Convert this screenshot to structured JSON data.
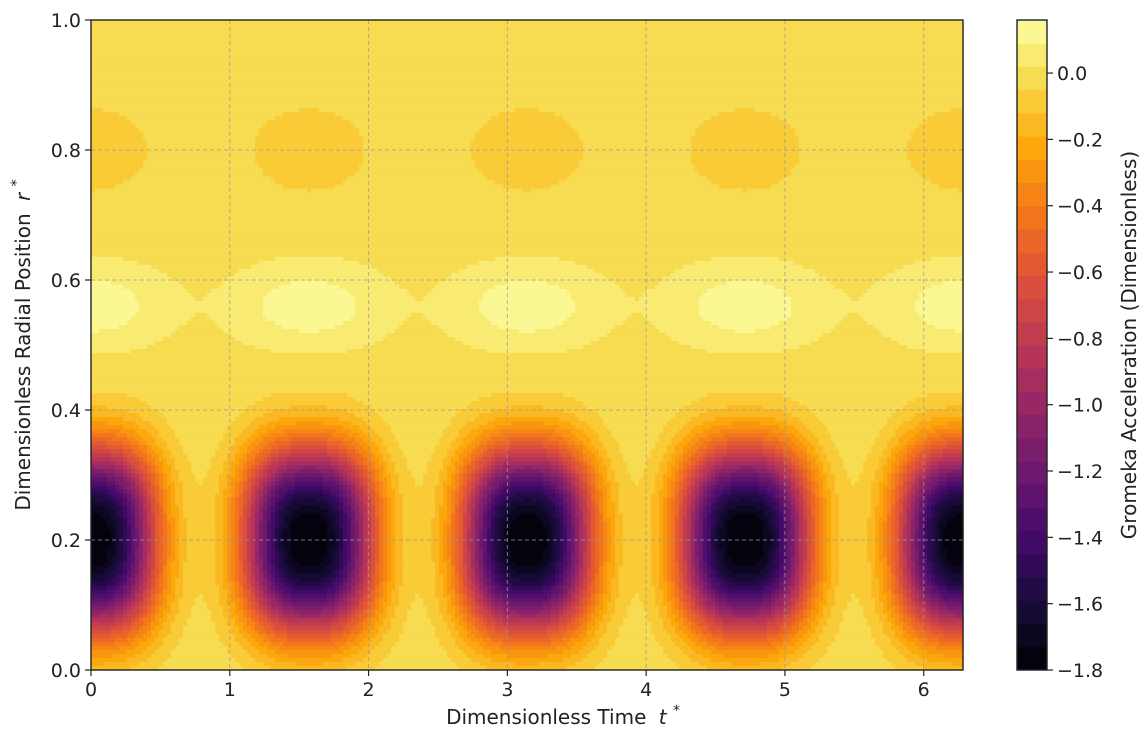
{
  "chart_data": {
    "type": "heatmap",
    "subtype": "filled-contour",
    "title": "",
    "xlabel": "Dimensionless Time",
    "xlabel_symbol": "t",
    "xlabel_sup": "*",
    "ylabel": "Dimensionless Radial Position",
    "ylabel_symbol": "r",
    "ylabel_sup": "*",
    "xlim": [
      0,
      6.283
    ],
    "ylim": [
      0,
      1
    ],
    "x_ticks": [
      0,
      1,
      2,
      3,
      4,
      5,
      6
    ],
    "x_tick_labels": [
      "0",
      "1",
      "2",
      "3",
      "4",
      "5",
      "6"
    ],
    "y_ticks": [
      0,
      0.2,
      0.4,
      0.6,
      0.8,
      1.0
    ],
    "y_tick_labels": [
      "0.0",
      "0.2",
      "0.4",
      "0.6",
      "0.8",
      "1.0"
    ],
    "grid": true,
    "colorbar": {
      "label": "Gromeka Acceleration (Dimensionless)",
      "colormap": "inferno",
      "range": [
        -1.8,
        0.16
      ],
      "ticks": [
        0.0,
        -0.2,
        -0.4,
        -0.6,
        -0.8,
        -1.0,
        -1.2,
        -1.4,
        -1.6,
        -1.8
      ],
      "tick_labels": [
        "0.0",
        "−0.2",
        "−0.4",
        "−0.6",
        "−0.8",
        "−1.0",
        "−1.2",
        "−1.4",
        "−1.6",
        "−1.8"
      ]
    },
    "features": [
      {
        "kind": "minimum",
        "r": 0.2,
        "t": [
          0,
          1.571,
          3.142,
          4.712,
          6.283
        ],
        "value": -1.8
      },
      {
        "kind": "maximum",
        "r": 0.56,
        "t": [
          0,
          1.571,
          3.142,
          4.712,
          6.283
        ],
        "value": 0.15
      },
      {
        "kind": "minimum",
        "r": 0.8,
        "t": [
          0,
          1.571,
          3.142,
          4.712,
          6.283
        ],
        "value": -0.1
      }
    ],
    "background_value": 0.0
  }
}
